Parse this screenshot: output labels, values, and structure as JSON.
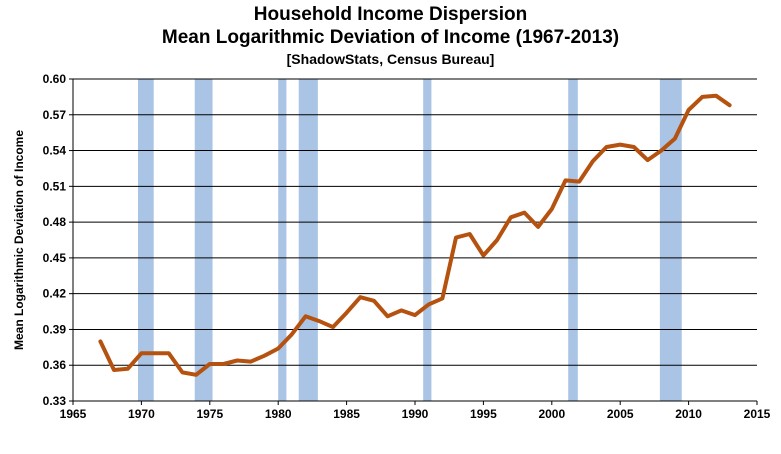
{
  "header": {
    "title": "Household Income Dispersion",
    "subtitle": "Mean Logarithmic Deviation of Income (1967-2013)",
    "source": "[ShadowStats, Census Bureau]"
  },
  "chart_data": {
    "type": "line",
    "title": "Household Income Dispersion",
    "subtitle": "Mean Logarithmic Deviation of Income (1967-2013)",
    "xlabel": "",
    "ylabel": "Mean Logarithmic Deviation of Income",
    "xlim": [
      1965,
      2015
    ],
    "ylim": [
      0.33,
      0.6
    ],
    "x_ticks": [
      "1965",
      "1970",
      "1975",
      "1980",
      "1985",
      "1990",
      "1995",
      "2000",
      "2005",
      "2010",
      "2015"
    ],
    "y_ticks": [
      "0.33",
      "0.36",
      "0.39",
      "0.42",
      "0.45",
      "0.48",
      "0.51",
      "0.54",
      "0.57",
      "0.60"
    ],
    "line_color": "#b5520f",
    "recession_color": "#a9c4e4",
    "recessions": [
      [
        1969.75,
        1970.9
      ],
      [
        1973.9,
        1975.2
      ],
      [
        1980.0,
        1980.6
      ],
      [
        1981.5,
        1982.9
      ],
      [
        1990.6,
        1991.2
      ],
      [
        2001.2,
        2001.9
      ],
      [
        2007.9,
        2009.5
      ]
    ],
    "series": [
      {
        "x": [
          1967,
          1968,
          1969,
          1970,
          1971,
          1972,
          1973,
          1974,
          1975,
          1976,
          1977,
          1978,
          1979,
          1980,
          1981,
          1982,
          1983,
          1984,
          1985,
          1986,
          1987,
          1988,
          1989,
          1990,
          1991,
          1992,
          1993,
          1994,
          1995,
          1996,
          1997,
          1998,
          1999,
          2000,
          2001,
          2002,
          2003,
          2004,
          2005,
          2006,
          2007,
          2008,
          2009,
          2010,
          2011,
          2012,
          2013
        ],
        "values": [
          0.38,
          0.356,
          0.357,
          0.37,
          0.37,
          0.37,
          0.354,
          0.352,
          0.361,
          0.361,
          0.364,
          0.363,
          0.368,
          0.374,
          0.386,
          0.401,
          0.397,
          0.392,
          0.404,
          0.417,
          0.414,
          0.401,
          0.406,
          0.402,
          0.411,
          0.416,
          0.467,
          0.47,
          0.452,
          0.465,
          0.484,
          0.488,
          0.476,
          0.491,
          0.515,
          0.514,
          0.531,
          0.543,
          0.545,
          0.543,
          0.532,
          0.54,
          0.55,
          0.574,
          0.585,
          0.586,
          0.578
        ]
      }
    ]
  }
}
